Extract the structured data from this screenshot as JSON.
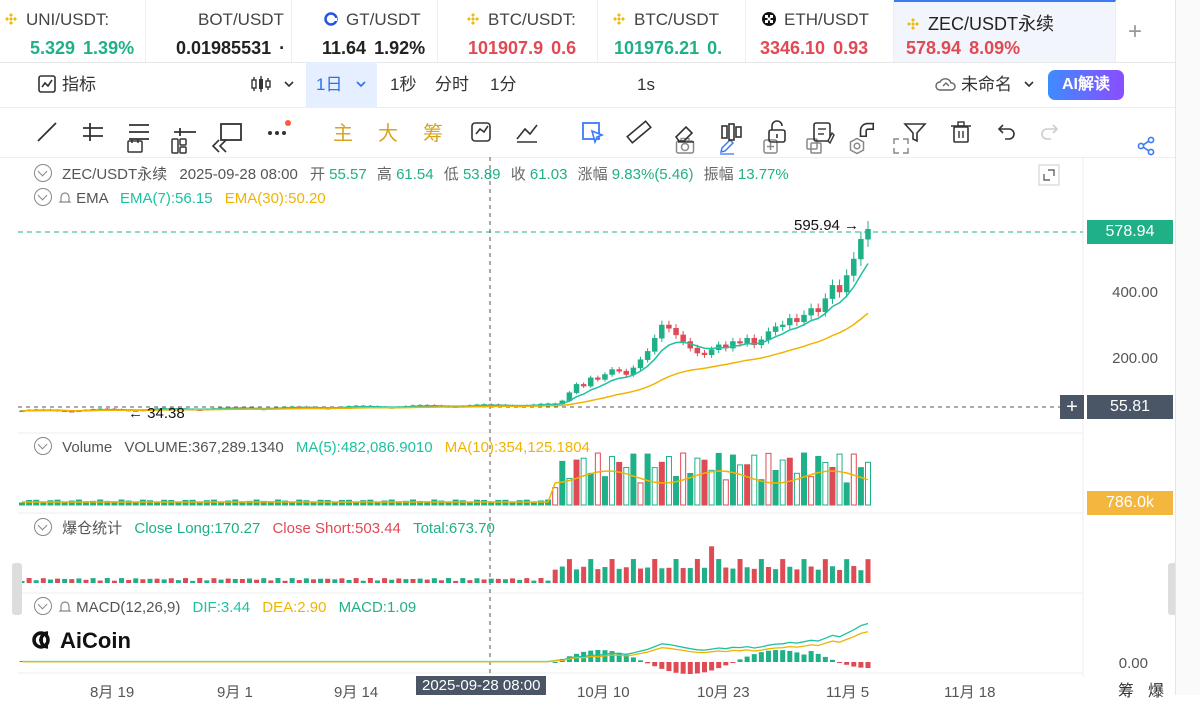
{
  "tickers": [
    {
      "name": "UNI/USDT:",
      "price": "5.329",
      "change": "1.39%",
      "dir": "up",
      "icon": "binance-icon"
    },
    {
      "name": "BOT/USDT",
      "price": "0.01985531",
      "change": "·",
      "dir": "dark",
      "icon": "none"
    },
    {
      "name": "GT/USDT",
      "price": "11.64",
      "change": "1.92%",
      "dir": "dark",
      "icon": "gate-icon"
    },
    {
      "name": "BTC/USDT:",
      "price": "101907.9",
      "change": "0.6",
      "dir": "dn",
      "icon": "binance-icon"
    },
    {
      "name": "BTC/USDT",
      "price": "101976.21",
      "change": "0.",
      "dir": "up",
      "icon": "binance-icon"
    },
    {
      "name": "ETH/USDT",
      "price": "3346.10",
      "change": "0.93",
      "dir": "dn",
      "icon": "okx-icon"
    },
    {
      "name": "ZEC/USDT永续",
      "price": "578.94",
      "change": "8.09%",
      "dir": "dn",
      "icon": "binance-icon",
      "active": true
    }
  ],
  "toolbar": {
    "indicators": "指标",
    "timeframe": "1日",
    "tf_1s": "1秒",
    "tf_time": "分时",
    "tf_1m": "1分",
    "interval": "1s",
    "layout": "未命名",
    "ai": "AI解读"
  },
  "drawing": {
    "main": "主",
    "big": "大",
    "chips": "筹"
  },
  "main_legend": {
    "symbol": "ZEC/USDT永续",
    "date": "2025-09-28 08:00",
    "open_k": "开",
    "open": "55.57",
    "high_k": "高",
    "high": "61.54",
    "low_k": "低",
    "low": "53.89",
    "close_k": "收",
    "close": "61.03",
    "chg_k": "涨幅",
    "chg": "9.83%(5.46)",
    "amp_k": "振幅",
    "amp": "13.77%"
  },
  "ema_legend": {
    "name": "EMA",
    "ema7": "EMA(7):56.15",
    "ema30": "EMA(30):50.20"
  },
  "vol_legend": {
    "name": "Volume",
    "vol": "VOLUME:367,289.1340",
    "ma5": "MA(5):482,086.9010",
    "ma10": "MA(10):354,125.1804"
  },
  "liq_legend": {
    "name": "爆仓统计",
    "long": "Close Long:170.27",
    "short": "Close Short:503.44",
    "total": "Total:673.70"
  },
  "macd_legend": {
    "name": "MACD(12,26,9)",
    "dif": "DIF:3.44",
    "dea": "DEA:2.90",
    "macd": "MACD:1.09"
  },
  "price_axis": {
    "p400": "400.00",
    "p200": "200.00",
    "last": "578.94",
    "cross": "55.81",
    "vol": "786.0k",
    "macd0": "0.00"
  },
  "annotations": {
    "high": "595.94 →",
    "low": "← 34.38"
  },
  "x_axis": {
    "l1": "8月 19",
    "l2": "9月 1",
    "l3": "9月 14",
    "cross": "2025-09-28 08:00",
    "l5": "10月 10",
    "l6": "10月 23",
    "l7": "11月 5",
    "l8": "11月 18",
    "r1": "筹",
    "r2": "爆"
  },
  "logo": "AiCoin",
  "colors": {
    "up": "#1fb088",
    "down": "#e04a55",
    "ema7": "#1fc1a0",
    "ema30": "#f0b400",
    "accent": "#3b7cf6"
  }
}
